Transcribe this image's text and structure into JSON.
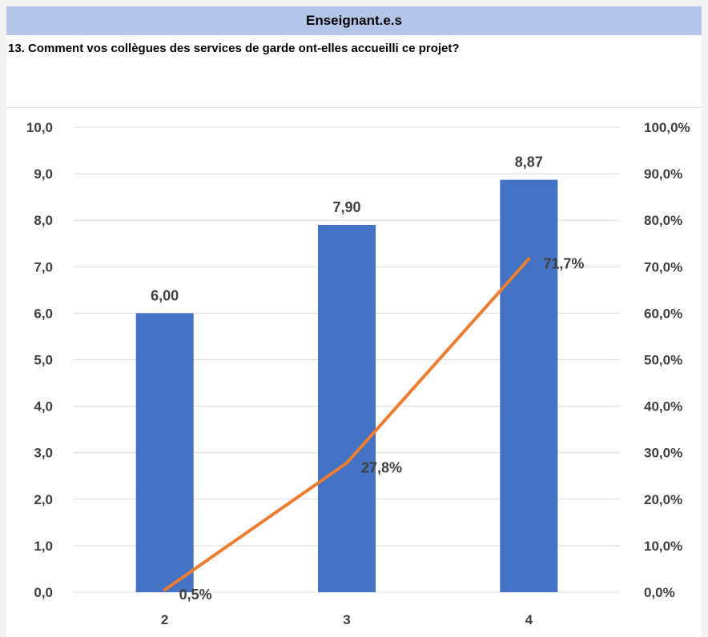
{
  "header": {
    "title": "Enseignant.e.s"
  },
  "question": "13. Comment vos collègues des services de garde ont-elles accueilli ce projet?",
  "chart_data": {
    "type": "bar",
    "categories": [
      "2",
      "3",
      "4"
    ],
    "series": [
      {
        "type": "bar",
        "axis": "left",
        "values": [
          6.0,
          7.9,
          8.87
        ],
        "labels": [
          "6,00",
          "7,90",
          "8,87"
        ],
        "color": "#4472c4"
      },
      {
        "type": "line",
        "axis": "right",
        "values": [
          0.5,
          27.8,
          71.7
        ],
        "labels": [
          "0,5%",
          "27,8%",
          "71,7%"
        ],
        "color": "#ed7d31"
      }
    ],
    "left_axis": {
      "ylim": [
        0,
        10
      ],
      "ticks": [
        "0,0",
        "1,0",
        "2,0",
        "3,0",
        "4,0",
        "5,0",
        "6,0",
        "7,0",
        "8,0",
        "9,0",
        "10,0"
      ]
    },
    "right_axis": {
      "ylim": [
        0,
        100
      ],
      "ticks": [
        "0,0%",
        "10,0%",
        "20,0%",
        "30,0%",
        "40,0%",
        "50,0%",
        "60,0%",
        "70,0%",
        "80,0%",
        "90,0%",
        "100,0%"
      ]
    },
    "grid": true,
    "legend": "none"
  }
}
